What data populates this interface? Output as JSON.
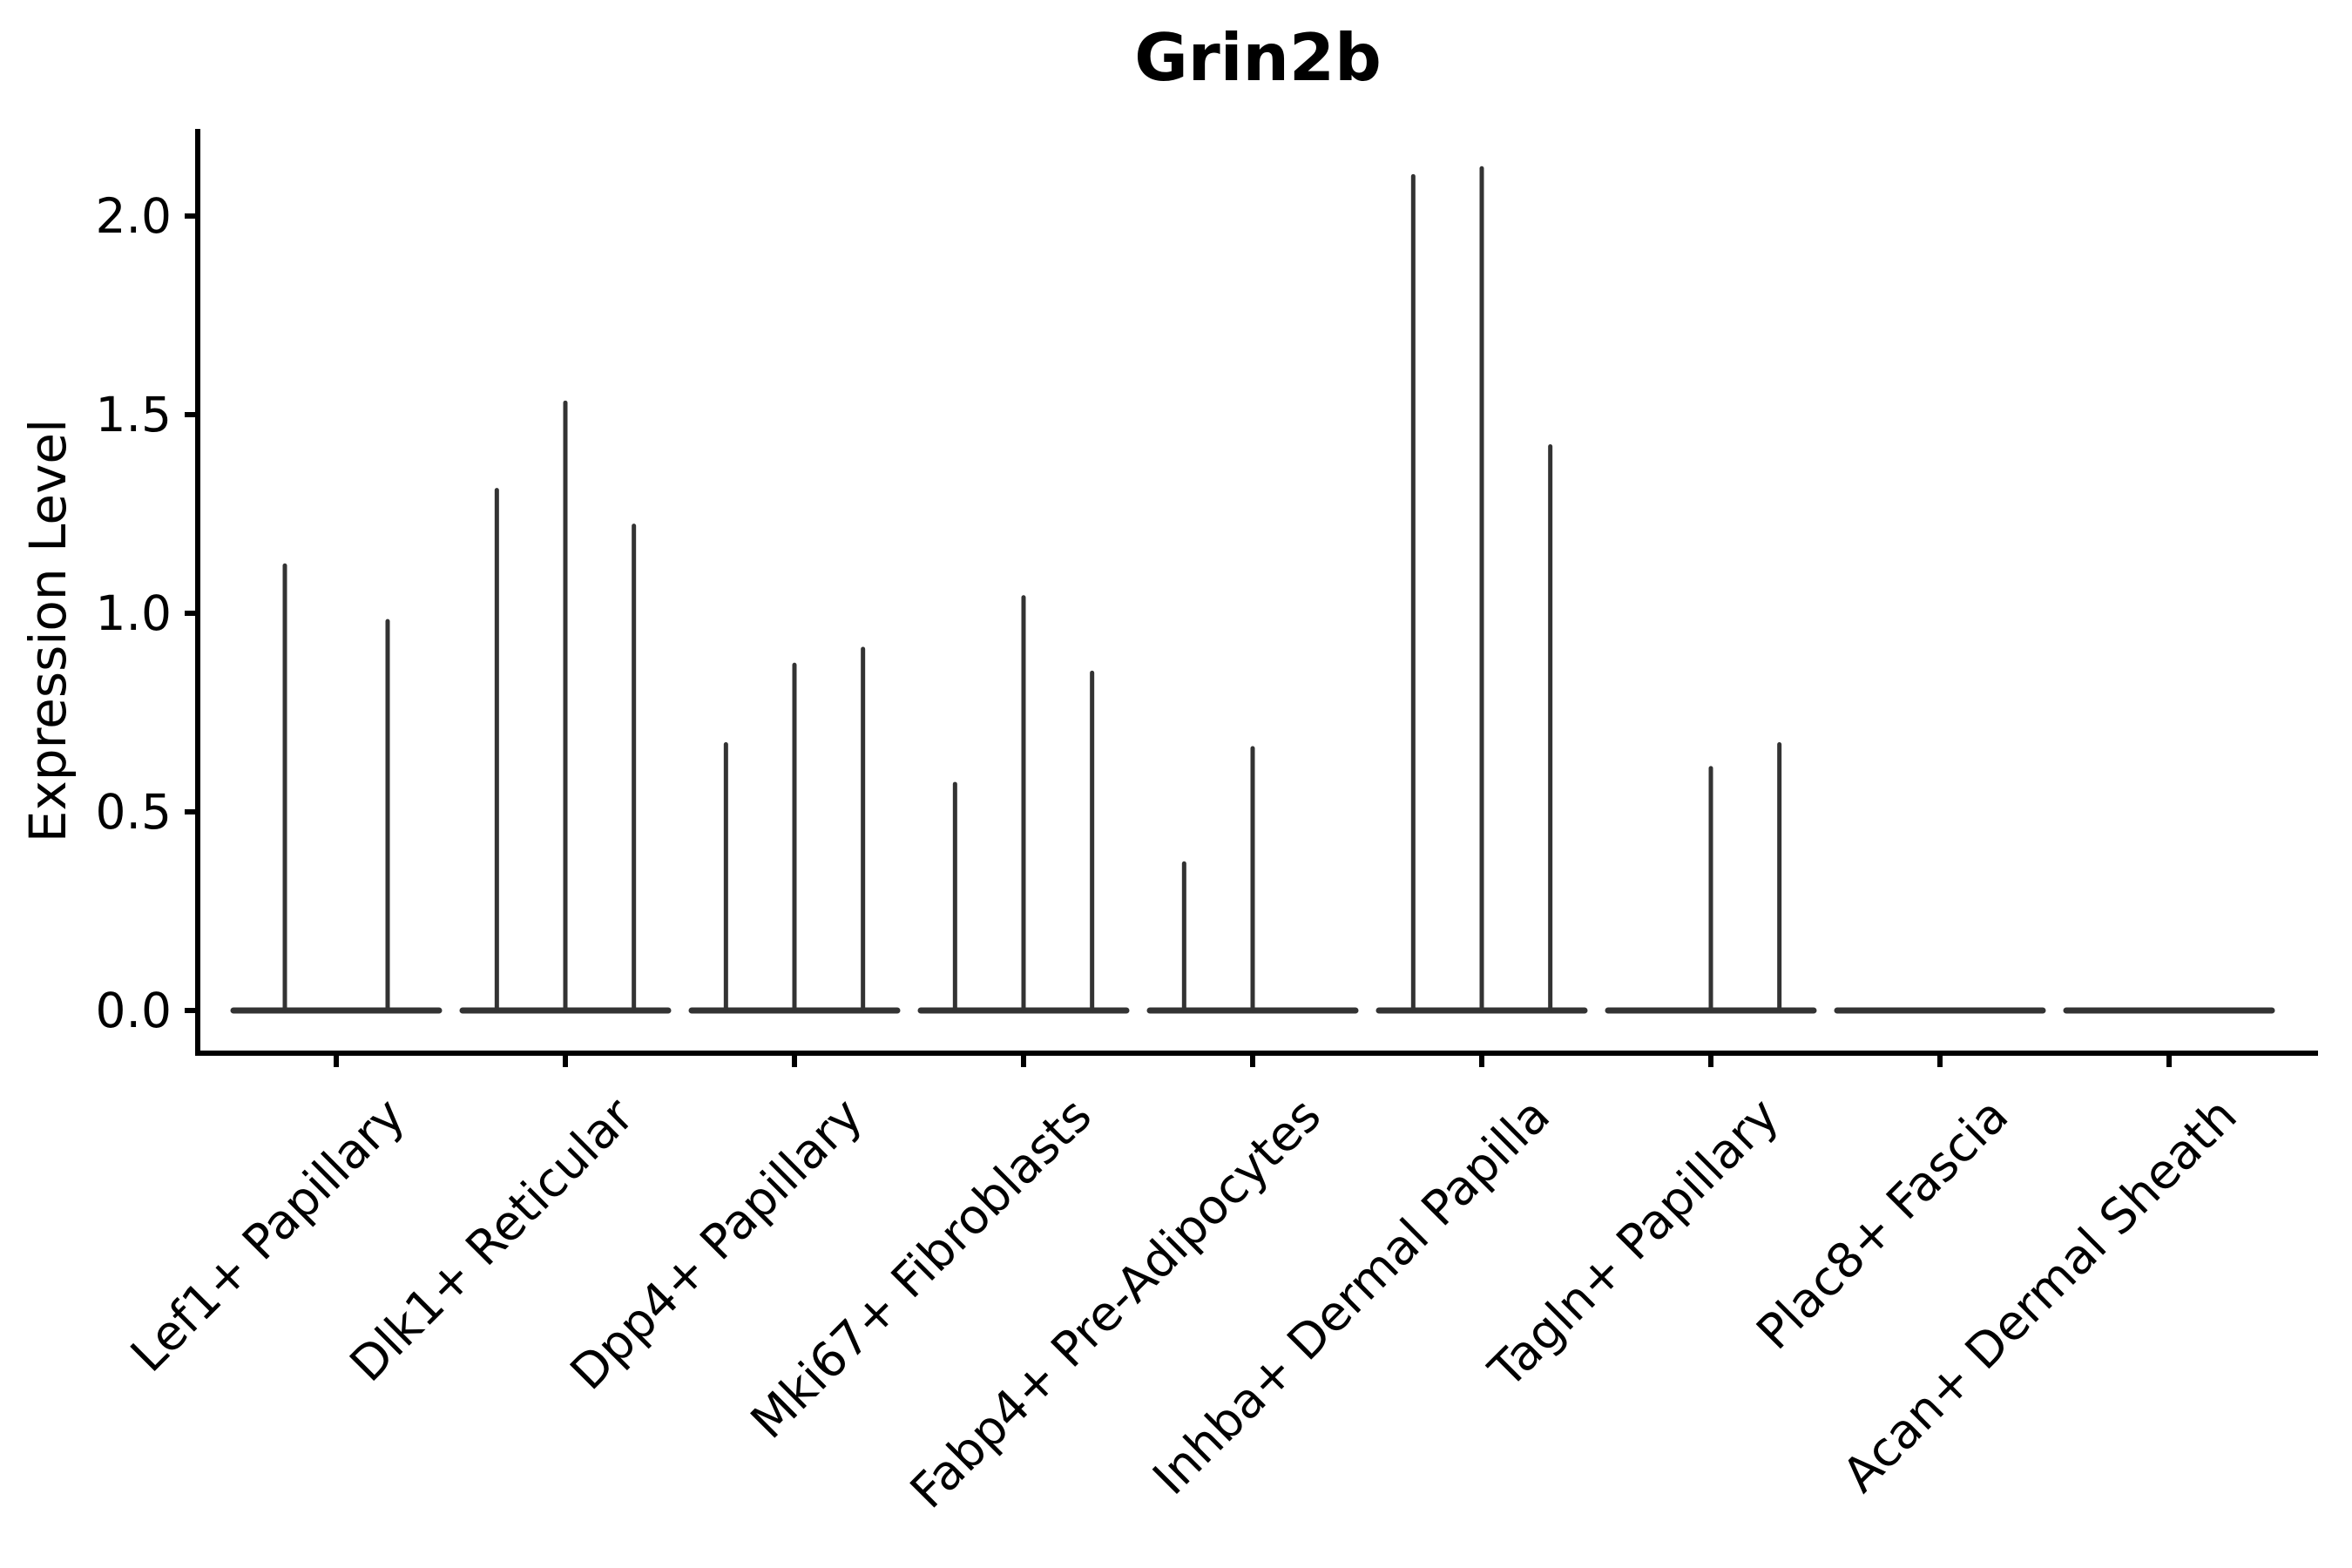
{
  "chart_data": {
    "type": "violin",
    "title": "Grin2b",
    "xlabel": "",
    "ylabel": "Expression Level",
    "ylim": [
      0,
      2.22
    ],
    "yticks": [
      0.0,
      0.5,
      1.0,
      1.5,
      2.0
    ],
    "ytick_labels": [
      "0.0",
      "0.5",
      "1.0",
      "1.5",
      "2.0"
    ],
    "grid": false,
    "legend": "none",
    "categories": [
      "Lef1+ Papillary",
      "Dlk1+ Reticular",
      "Dpp4+ Papillary",
      "Mki67+ Fibroblasts",
      "Fabp4+ Pre-Adipocytes",
      "Inhba+ Dermal Papilla",
      "Tagln+ Papillary",
      "Plac8+ Fascia",
      "Acan+ Dermal Sheath"
    ],
    "groups": [
      {
        "category": "Lef1+ Papillary",
        "violin_maxima": [
          1.12,
          0.98
        ]
      },
      {
        "category": "Dlk1+ Reticular",
        "violin_maxima": [
          1.31,
          1.53,
          1.22
        ]
      },
      {
        "category": "Dpp4+ Papillary",
        "violin_maxima": [
          0.67,
          0.87,
          0.91
        ]
      },
      {
        "category": "Mki67+ Fibroblasts",
        "violin_maxima": [
          0.57,
          1.04,
          0.85
        ]
      },
      {
        "category": "Fabp4+ Pre-Adipocytes",
        "violin_maxima": [
          0.37,
          0.66,
          0.0
        ]
      },
      {
        "category": "Inhba+ Dermal Papilla",
        "violin_maxima": [
          2.1,
          2.12,
          1.42
        ]
      },
      {
        "category": "Tagln+ Papillary",
        "violin_maxima": [
          0.0,
          0.61,
          0.67
        ]
      },
      {
        "category": "Plac8+ Fascia",
        "violin_maxima": [
          0.0,
          0.0,
          0.0
        ]
      },
      {
        "category": "Acan+ Dermal Sheath",
        "violin_maxima": [
          0.0,
          0.0,
          0.0
        ]
      }
    ],
    "colors": {
      "violin_stroke": "#333333",
      "axis": "#000000",
      "text": "#000000",
      "background": "#ffffff"
    },
    "description": "Violin plot of Grin2b expression per fibroblast subtype; each category holds 2-3 near-zero-width violins drawn as a flat base at 0 with a thin spike up to the violin maximum."
  }
}
